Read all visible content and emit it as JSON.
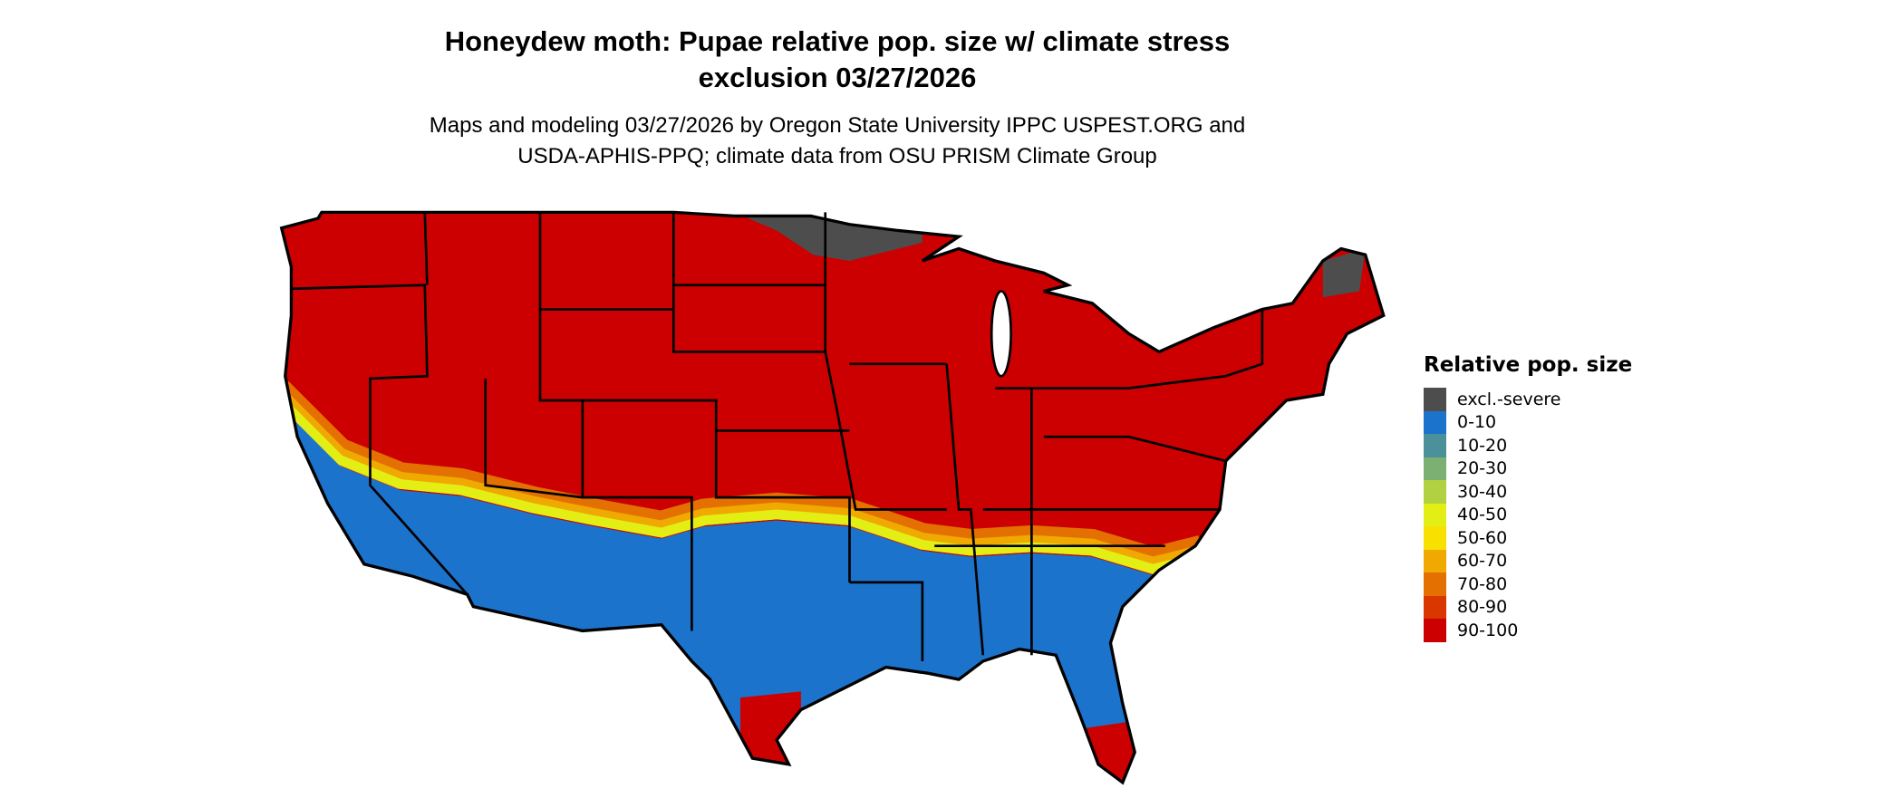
{
  "title": {
    "line1": "Honeydew moth: Pupae relative pop. size w/ climate stress",
    "line2": "exclusion 03/27/2026"
  },
  "subtitle": {
    "line1": "Maps and modeling 03/27/2026 by Oregon State University IPPC USPEST.ORG and",
    "line2": "USDA-APHIS-PPQ; climate data from OSU PRISM Climate Group"
  },
  "legend": {
    "title": "Relative pop. size",
    "items": [
      {
        "label": "excl.-severe",
        "color": "#4d4d4d"
      },
      {
        "label": "0-10",
        "color": "#1c73cc"
      },
      {
        "label": "10-20",
        "color": "#4a919b"
      },
      {
        "label": "20-30",
        "color": "#7caf72"
      },
      {
        "label": "30-40",
        "color": "#b1d042"
      },
      {
        "label": "40-50",
        "color": "#e3ef14"
      },
      {
        "label": "50-60",
        "color": "#f8e100"
      },
      {
        "label": "60-70",
        "color": "#efa900"
      },
      {
        "label": "70-80",
        "color": "#e37000"
      },
      {
        "label": "80-90",
        "color": "#da3600"
      },
      {
        "label": "90-100",
        "color": "#cc0000"
      }
    ]
  }
}
